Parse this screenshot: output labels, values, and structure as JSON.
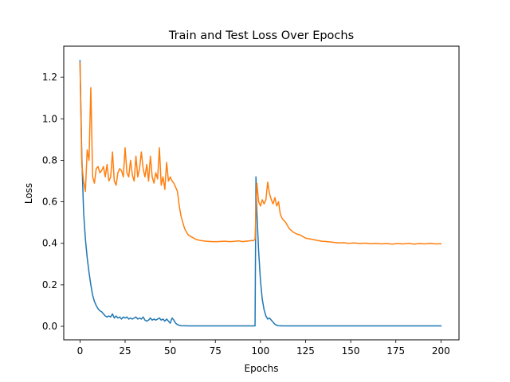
{
  "chart_data": {
    "type": "line",
    "title": "Train and Test Loss Over Epochs",
    "xlabel": "Epochs",
    "ylabel": "Loss",
    "xlim": [
      -9,
      210
    ],
    "ylim": [
      -0.065,
      1.35
    ],
    "grid": false,
    "legend": "none",
    "x_ticks": [
      0,
      25,
      50,
      75,
      100,
      125,
      150,
      175,
      200
    ],
    "x_tick_labels": [
      "0",
      "25",
      "50",
      "75",
      "100",
      "125",
      "150",
      "175",
      "200"
    ],
    "y_ticks": [
      0.0,
      0.2,
      0.4,
      0.6,
      0.8,
      1.0,
      1.2
    ],
    "y_tick_labels": [
      "0.0",
      "0.2",
      "0.4",
      "0.6",
      "0.8",
      "1.0",
      "1.2"
    ],
    "series": [
      {
        "color": "#1f77b4",
        "points": [
          [
            0,
            1.28
          ],
          [
            1,
            0.82
          ],
          [
            2,
            0.55
          ],
          [
            3,
            0.42
          ],
          [
            4,
            0.33
          ],
          [
            5,
            0.26
          ],
          [
            6,
            0.2
          ],
          [
            7,
            0.15
          ],
          [
            8,
            0.12
          ],
          [
            9,
            0.1
          ],
          [
            10,
            0.085
          ],
          [
            11,
            0.075
          ],
          [
            12,
            0.07
          ],
          [
            13,
            0.06
          ],
          [
            14,
            0.05
          ],
          [
            15,
            0.045
          ],
          [
            16,
            0.05
          ],
          [
            17,
            0.045
          ],
          [
            18,
            0.06
          ],
          [
            19,
            0.04
          ],
          [
            20,
            0.05
          ],
          [
            21,
            0.04
          ],
          [
            22,
            0.045
          ],
          [
            23,
            0.035
          ],
          [
            24,
            0.045
          ],
          [
            25,
            0.04
          ],
          [
            26,
            0.045
          ],
          [
            27,
            0.035
          ],
          [
            28,
            0.04
          ],
          [
            29,
            0.035
          ],
          [
            30,
            0.04
          ],
          [
            31,
            0.045
          ],
          [
            32,
            0.035
          ],
          [
            33,
            0.04
          ],
          [
            34,
            0.035
          ],
          [
            35,
            0.045
          ],
          [
            36,
            0.03
          ],
          [
            37,
            0.025
          ],
          [
            38,
            0.03
          ],
          [
            39,
            0.04
          ],
          [
            40,
            0.03
          ],
          [
            41,
            0.035
          ],
          [
            42,
            0.03
          ],
          [
            43,
            0.035
          ],
          [
            44,
            0.04
          ],
          [
            45,
            0.03
          ],
          [
            46,
            0.035
          ],
          [
            47,
            0.025
          ],
          [
            48,
            0.035
          ],
          [
            49,
            0.025
          ],
          [
            50,
            0.015
          ],
          [
            51,
            0.04
          ],
          [
            52,
            0.03
          ],
          [
            53,
            0.015
          ],
          [
            54,
            0.008
          ],
          [
            55,
            0.005
          ],
          [
            56,
            0.003
          ],
          [
            60,
            0.002
          ],
          [
            97,
            0.002
          ],
          [
            97.5,
            0.72
          ],
          [
            98,
            0.55
          ],
          [
            99,
            0.36
          ],
          [
            100,
            0.22
          ],
          [
            101,
            0.13
          ],
          [
            102,
            0.08
          ],
          [
            103,
            0.05
          ],
          [
            104,
            0.035
          ],
          [
            105,
            0.04
          ],
          [
            106,
            0.03
          ],
          [
            107,
            0.02
          ],
          [
            108,
            0.01
          ],
          [
            109,
            0.005
          ],
          [
            110,
            0.003
          ],
          [
            112,
            0.002
          ],
          [
            200,
            0.002
          ]
        ]
      },
      {
        "color": "#ff7f0e",
        "points": [
          [
            0,
            1.27
          ],
          [
            1,
            0.78
          ],
          [
            2,
            0.7
          ],
          [
            3,
            0.65
          ],
          [
            4,
            0.85
          ],
          [
            5,
            0.8
          ],
          [
            6,
            1.15
          ],
          [
            7,
            0.72
          ],
          [
            8,
            0.69
          ],
          [
            9,
            0.76
          ],
          [
            10,
            0.77
          ],
          [
            11,
            0.74
          ],
          [
            12,
            0.75
          ],
          [
            13,
            0.77
          ],
          [
            14,
            0.72
          ],
          [
            15,
            0.78
          ],
          [
            16,
            0.7
          ],
          [
            17,
            0.72
          ],
          [
            18,
            0.84
          ],
          [
            19,
            0.7
          ],
          [
            20,
            0.68
          ],
          [
            21,
            0.74
          ],
          [
            22,
            0.76
          ],
          [
            23,
            0.75
          ],
          [
            24,
            0.72
          ],
          [
            25,
            0.86
          ],
          [
            26,
            0.74
          ],
          [
            27,
            0.72
          ],
          [
            28,
            0.8
          ],
          [
            29,
            0.73
          ],
          [
            30,
            0.7
          ],
          [
            31,
            0.82
          ],
          [
            32,
            0.72
          ],
          [
            33,
            0.76
          ],
          [
            34,
            0.84
          ],
          [
            35,
            0.76
          ],
          [
            36,
            0.72
          ],
          [
            37,
            0.78
          ],
          [
            38,
            0.7
          ],
          [
            39,
            0.82
          ],
          [
            40,
            0.72
          ],
          [
            41,
            0.69
          ],
          [
            42,
            0.74
          ],
          [
            43,
            0.71
          ],
          [
            44,
            0.86
          ],
          [
            45,
            0.68
          ],
          [
            46,
            0.72
          ],
          [
            47,
            0.66
          ],
          [
            48,
            0.79
          ],
          [
            49,
            0.7
          ],
          [
            50,
            0.72
          ],
          [
            51,
            0.7
          ],
          [
            52,
            0.69
          ],
          [
            53,
            0.67
          ],
          [
            54,
            0.65
          ],
          [
            55,
            0.58
          ],
          [
            56,
            0.53
          ],
          [
            57,
            0.5
          ],
          [
            58,
            0.47
          ],
          [
            59,
            0.455
          ],
          [
            60,
            0.44
          ],
          [
            62,
            0.43
          ],
          [
            64,
            0.42
          ],
          [
            66,
            0.415
          ],
          [
            68,
            0.412
          ],
          [
            70,
            0.41
          ],
          [
            73,
            0.408
          ],
          [
            76,
            0.408
          ],
          [
            80,
            0.41
          ],
          [
            83,
            0.408
          ],
          [
            86,
            0.41
          ],
          [
            88,
            0.412
          ],
          [
            90,
            0.408
          ],
          [
            92,
            0.41
          ],
          [
            94,
            0.412
          ],
          [
            95,
            0.414
          ],
          [
            96,
            0.412
          ],
          [
            97,
            0.42
          ],
          [
            98,
            0.69
          ],
          [
            99,
            0.6
          ],
          [
            100,
            0.58
          ],
          [
            101,
            0.61
          ],
          [
            102,
            0.59
          ],
          [
            103,
            0.61
          ],
          [
            104,
            0.695
          ],
          [
            105,
            0.64
          ],
          [
            106,
            0.61
          ],
          [
            107,
            0.59
          ],
          [
            108,
            0.62
          ],
          [
            109,
            0.58
          ],
          [
            110,
            0.6
          ],
          [
            111,
            0.54
          ],
          [
            112,
            0.52
          ],
          [
            114,
            0.5
          ],
          [
            116,
            0.47
          ],
          [
            118,
            0.455
          ],
          [
            120,
            0.445
          ],
          [
            122,
            0.44
          ],
          [
            125,
            0.425
          ],
          [
            128,
            0.42
          ],
          [
            131,
            0.415
          ],
          [
            134,
            0.41
          ],
          [
            137,
            0.408
          ],
          [
            140,
            0.405
          ],
          [
            143,
            0.402
          ],
          [
            146,
            0.403
          ],
          [
            149,
            0.4
          ],
          [
            152,
            0.402
          ],
          [
            155,
            0.399
          ],
          [
            158,
            0.401
          ],
          [
            161,
            0.398
          ],
          [
            164,
            0.4
          ],
          [
            167,
            0.397
          ],
          [
            170,
            0.399
          ],
          [
            173,
            0.396
          ],
          [
            176,
            0.399
          ],
          [
            179,
            0.397
          ],
          [
            182,
            0.4
          ],
          [
            185,
            0.396
          ],
          [
            188,
            0.399
          ],
          [
            191,
            0.397
          ],
          [
            194,
            0.4
          ],
          [
            197,
            0.397
          ],
          [
            200,
            0.398
          ]
        ]
      }
    ]
  }
}
